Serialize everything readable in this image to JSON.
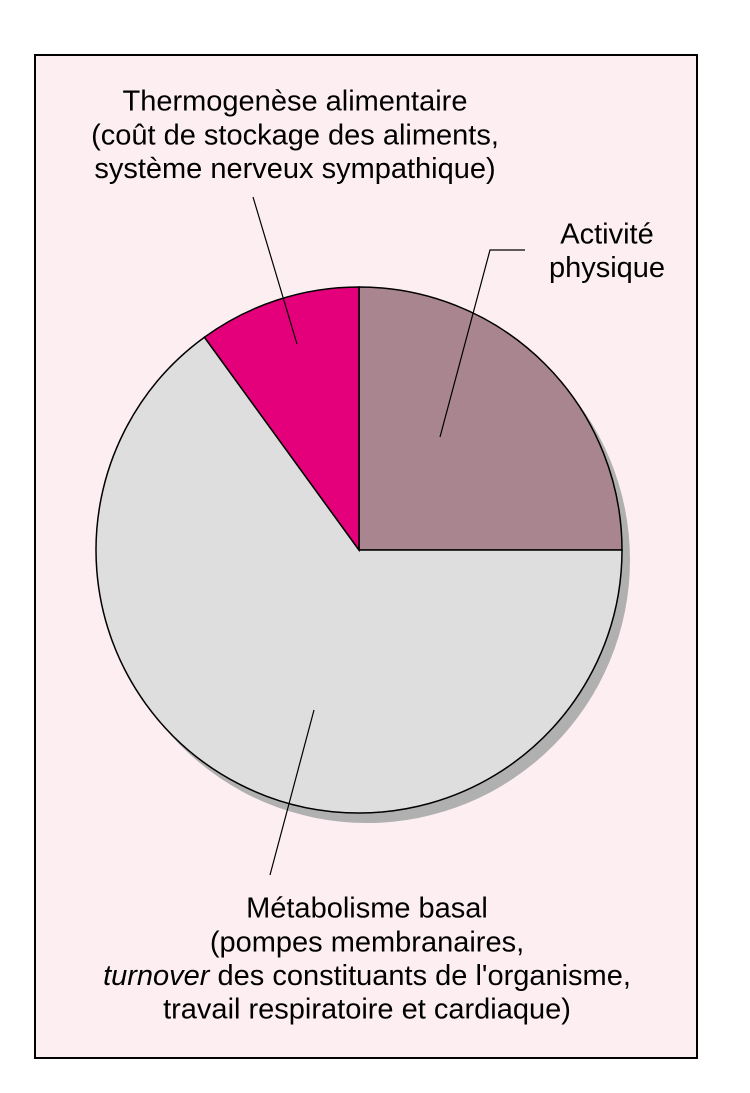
{
  "chart_data": {
    "type": "pie",
    "categories": [
      [
        "Activité",
        "physique"
      ],
      [
        "Métabolisme basal"
      ],
      [
        "Thermogenèse alimentaire"
      ]
    ],
    "notes": [
      [],
      [
        [
          {
            "text": "(pompes membranaires,"
          }
        ],
        [
          {
            "text": "turnover",
            "italic": true
          },
          {
            "text": " des constituants de l'organisme,"
          }
        ],
        [
          {
            "text": "travail respiratoire et cardiaque)"
          }
        ]
      ],
      [
        [
          {
            "text": "(coût de stockage des aliments,"
          }
        ],
        [
          {
            "text": "système nerveux sympathique)"
          }
        ]
      ]
    ],
    "values": [
      25,
      65,
      10
    ],
    "colors": [
      "#a8858f",
      "#dedede",
      "#e4007a"
    ]
  }
}
